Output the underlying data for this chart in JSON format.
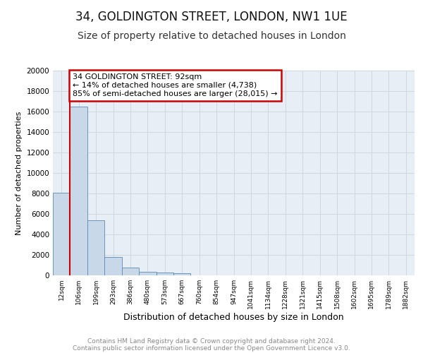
{
  "title1": "34, GOLDINGTON STREET, LONDON, NW1 1UE",
  "title2": "Size of property relative to detached houses in London",
  "xlabel": "Distribution of detached houses by size in London",
  "ylabel": "Number of detached properties",
  "categories": [
    "12sqm",
    "106sqm",
    "199sqm",
    "293sqm",
    "386sqm",
    "480sqm",
    "573sqm",
    "667sqm",
    "760sqm",
    "854sqm",
    "947sqm",
    "1041sqm",
    "1134sqm",
    "1228sqm",
    "1321sqm",
    "1415sqm",
    "1508sqm",
    "1602sqm",
    "1695sqm",
    "1789sqm",
    "1882sqm"
  ],
  "values": [
    8100,
    16500,
    5400,
    1800,
    750,
    350,
    300,
    200,
    0,
    0,
    0,
    0,
    0,
    0,
    0,
    0,
    0,
    0,
    0,
    0,
    0
  ],
  "bar_color": "#c8d8e8",
  "bar_edge_color": "#5a8ab5",
  "annotation_line1": "34 GOLDINGTON STREET: 92sqm",
  "annotation_line2": "← 14% of detached houses are smaller (4,738)",
  "annotation_line3": "85% of semi-detached houses are larger (28,015) →",
  "property_line_x": 0.5,
  "property_line_color": "#cc0000",
  "annotation_box_color": "#cc0000",
  "ylim": [
    0,
    20000
  ],
  "yticks": [
    0,
    2000,
    4000,
    6000,
    8000,
    10000,
    12000,
    14000,
    16000,
    18000,
    20000
  ],
  "grid_color": "#c8d4e0",
  "background_color": "#e8eef5",
  "footer1": "Contains HM Land Registry data © Crown copyright and database right 2024.",
  "footer2": "Contains public sector information licensed under the Open Government Licence v3.0.",
  "title1_fontsize": 12,
  "title2_fontsize": 10
}
